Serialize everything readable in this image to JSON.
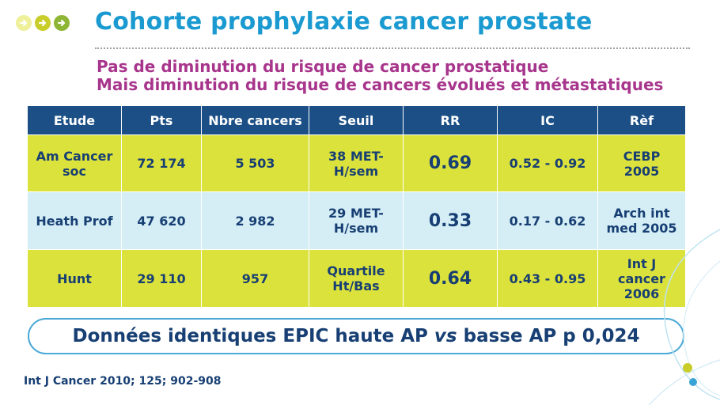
{
  "title": "Cohorte prophylaxie cancer prostate",
  "subtitle_line1": "Pas de diminution du risque de cancer prostatique",
  "subtitle_line2": "Mais diminution du risque de cancers évolués et métastatiques",
  "table": {
    "headers": [
      "Etude",
      "Pts",
      "Nbre cancers",
      "Seuil",
      "RR",
      "IC",
      "Rèf"
    ],
    "rows": [
      {
        "etude": "Am Cancer soc",
        "pts": "72 174",
        "nbre": "5 503",
        "seuil": "38 MET-H/sem",
        "rr": "0.69",
        "ic": "0.52 - 0.92",
        "ref": "CEBP 2005"
      },
      {
        "etude": "Heath Prof",
        "pts": "47 620",
        "nbre": "2 982",
        "seuil": "29 MET-H/sem",
        "rr": "0.33",
        "ic": "0.17 - 0.62",
        "ref": "Arch int med 2005"
      },
      {
        "etude": "Hunt",
        "pts": "29 110",
        "nbre": "957",
        "seuil": "Quartile Ht/Bas",
        "rr": "0.64",
        "ic": "0.43 - 0.95",
        "ref": "Int J cancer 2006"
      }
    ]
  },
  "banner": {
    "before": "Données identiques EPIC haute AP ",
    "italic": "vs",
    "after": " basse AP p 0,024"
  },
  "reference": "Int J Cancer 2010; 125; 902-908",
  "colors": {
    "title": "#1a9ad0",
    "subtitle": "#a8358c",
    "header_bg": "#1b4f86",
    "row_yellow": "#dce23c",
    "row_blue": "#d5eef6",
    "text_dark": "#173f73",
    "bullet_yellow": "#c8cd2a",
    "bullet_green": "#8fb535"
  }
}
